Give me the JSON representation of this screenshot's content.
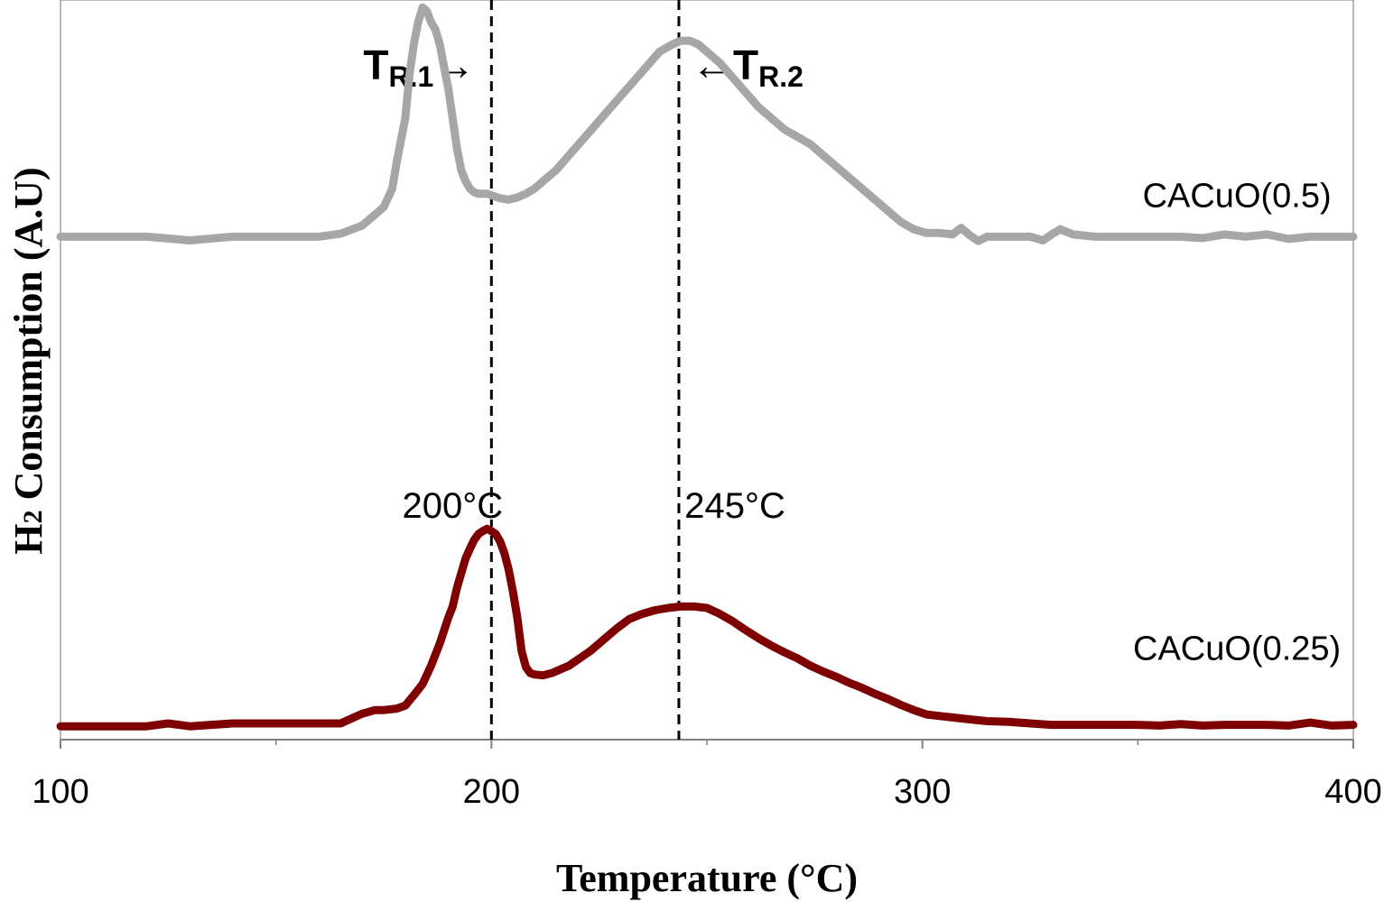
{
  "chart_data": {
    "type": "line",
    "title": "",
    "xlabel": "Temperature (°C)",
    "ylabel": "H2 Consumption (A.U)",
    "ylabel_main": "H",
    "ylabel_sub": "2",
    "ylabel_rest": " Consumption (A.U)",
    "xlim": [
      100,
      400
    ],
    "ylim": [
      0,
      1
    ],
    "xticks": [
      100,
      200,
      300,
      400
    ],
    "xtick_labels": [
      "100",
      "200",
      "300",
      "400"
    ],
    "minor_xticks": [
      150,
      250,
      350
    ],
    "grid": false,
    "series": [
      {
        "name": "CACuO(0.5)",
        "color": "#A6A6A6",
        "x": [
          100,
          110,
          120,
          130,
          140,
          150,
          160,
          165,
          170,
          173,
          175,
          177,
          178,
          180,
          181,
          182,
          183,
          184,
          185,
          186,
          187,
          188,
          189,
          190,
          191,
          192,
          193,
          194,
          195,
          196,
          197,
          198,
          199,
          200,
          202,
          204,
          206,
          208,
          210,
          212,
          215,
          218,
          221,
          224,
          227,
          230,
          233,
          236,
          239,
          242,
          244,
          246,
          248,
          250,
          253,
          256,
          259,
          262,
          265,
          268,
          271,
          274,
          277,
          280,
          283,
          286,
          289,
          292,
          295,
          298,
          301,
          304,
          307,
          309,
          311,
          313,
          315,
          320,
          325,
          328,
          330,
          332,
          335,
          340,
          345,
          350,
          355,
          360,
          365,
          370,
          375,
          380,
          385,
          390,
          395,
          400
        ],
        "y": [
          0.68,
          0.68,
          0.68,
          0.675,
          0.68,
          0.68,
          0.68,
          0.684,
          0.695,
          0.71,
          0.72,
          0.745,
          0.78,
          0.84,
          0.9,
          0.94,
          0.97,
          0.99,
          0.985,
          0.97,
          0.96,
          0.94,
          0.91,
          0.88,
          0.84,
          0.8,
          0.77,
          0.755,
          0.745,
          0.74,
          0.738,
          0.738,
          0.738,
          0.736,
          0.732,
          0.73,
          0.733,
          0.738,
          0.745,
          0.755,
          0.77,
          0.79,
          0.81,
          0.83,
          0.85,
          0.87,
          0.89,
          0.91,
          0.93,
          0.94,
          0.945,
          0.945,
          0.94,
          0.93,
          0.915,
          0.895,
          0.875,
          0.855,
          0.84,
          0.825,
          0.815,
          0.805,
          0.79,
          0.775,
          0.76,
          0.745,
          0.73,
          0.715,
          0.7,
          0.69,
          0.685,
          0.685,
          0.683,
          0.692,
          0.682,
          0.674,
          0.68,
          0.68,
          0.68,
          0.675,
          0.683,
          0.69,
          0.683,
          0.68,
          0.68,
          0.68,
          0.68,
          0.68,
          0.678,
          0.683,
          0.68,
          0.683,
          0.677,
          0.68,
          0.68,
          0.68
        ]
      },
      {
        "name": "CACuO(0.25)",
        "color": "#7F0000",
        "x": [
          100,
          110,
          120,
          125,
          130,
          140,
          150,
          160,
          165,
          170,
          173,
          175,
          178,
          180,
          182,
          184,
          186,
          188,
          190,
          191,
          192,
          193,
          194,
          195,
          196,
          197,
          198,
          199,
          200,
          201,
          202,
          203,
          204,
          205,
          206,
          207,
          208,
          209,
          210,
          212,
          214,
          216,
          218,
          220,
          223,
          226,
          229,
          232,
          235,
          238,
          241,
          244,
          247,
          250,
          253,
          256,
          259,
          262,
          265,
          268,
          271,
          274,
          277,
          280,
          283,
          286,
          289,
          292,
          295,
          298,
          301,
          304,
          307,
          310,
          315,
          320,
          325,
          330,
          335,
          340,
          345,
          350,
          355,
          360,
          365,
          370,
          375,
          380,
          385,
          390,
          395,
          400
        ],
        "y": [
          0.018,
          0.018,
          0.018,
          0.022,
          0.018,
          0.022,
          0.022,
          0.022,
          0.022,
          0.035,
          0.04,
          0.04,
          0.042,
          0.046,
          0.06,
          0.075,
          0.1,
          0.13,
          0.165,
          0.18,
          0.205,
          0.225,
          0.245,
          0.258,
          0.27,
          0.278,
          0.282,
          0.285,
          0.282,
          0.278,
          0.268,
          0.252,
          0.23,
          0.2,
          0.165,
          0.12,
          0.098,
          0.09,
          0.088,
          0.087,
          0.09,
          0.095,
          0.1,
          0.108,
          0.12,
          0.135,
          0.15,
          0.163,
          0.17,
          0.175,
          0.178,
          0.18,
          0.18,
          0.178,
          0.17,
          0.16,
          0.148,
          0.137,
          0.127,
          0.118,
          0.11,
          0.1,
          0.092,
          0.085,
          0.077,
          0.07,
          0.062,
          0.055,
          0.047,
          0.04,
          0.034,
          0.032,
          0.03,
          0.028,
          0.025,
          0.024,
          0.022,
          0.02,
          0.02,
          0.02,
          0.02,
          0.02,
          0.019,
          0.021,
          0.019,
          0.02,
          0.02,
          0.02,
          0.019,
          0.023,
          0.019,
          0.02
        ]
      }
    ],
    "reference_lines": [
      {
        "x": 200,
        "label_main": "T",
        "label_sub": "R.1",
        "arrow": "→"
      },
      {
        "x": 243.5,
        "label_main": "T",
        "label_sub": "R.2",
        "arrow": "←"
      }
    ],
    "annotations": [
      {
        "text": "200°C",
        "x": 191,
        "y": 0.3
      },
      {
        "text": "245°C",
        "x": 256.5,
        "y": 0.3
      }
    ],
    "series_labels": [
      {
        "text": "CACuO(0.5)",
        "x": 373,
        "y": 0.72
      },
      {
        "text": "CACuO(0.25)",
        "x": 373,
        "y": 0.108
      }
    ]
  }
}
